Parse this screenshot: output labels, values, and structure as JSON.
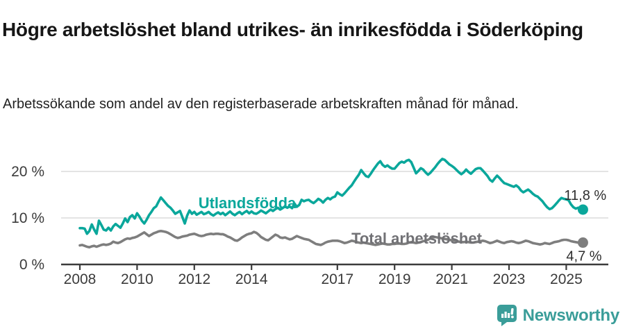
{
  "header": {
    "title": "Högre arbetslöshet bland utrikes- än inrikesfödda i Söderköping",
    "subtitle": "Arbetssökande som andel av den registerbaserade arbetskraften månad för månad."
  },
  "footer": {
    "brand": "Newsworthy",
    "brand_color": "#3a9d99",
    "logo_icon": "newsworthy-speech-bubble-bar-chart-icon"
  },
  "colors": {
    "foreign_born_line": "#0aa79b",
    "total_line": "#7e7e7e",
    "total_label": "#717175",
    "axis": "#3b3b3b",
    "gridline": "#dcdcdc",
    "value_label": "#2e2e2e"
  },
  "chart_data": {
    "type": "line",
    "title": "Högre arbetslöshet bland utrikes- än inrikesfödda i Söderköping",
    "subtitle": "Arbetssökande som andel av den registerbaserade arbetskraften månad för månad.",
    "x_unit": "monthly",
    "x_start": 2008.0,
    "x_end": 2025.583,
    "x_ticks": [
      "2008",
      "2010",
      "2012",
      "2014",
      "2017",
      "2019",
      "2021",
      "2023",
      "2025"
    ],
    "y_ticks": [
      {
        "value": 0,
        "label": "0 %"
      },
      {
        "value": 10,
        "label": "10 %"
      },
      {
        "value": 20,
        "label": "20 %"
      }
    ],
    "ylim": [
      0,
      24
    ],
    "grid": "horizontal",
    "legend_position": "inline-labels",
    "series": [
      {
        "name": "Utlandsfödda",
        "color": "#0aa79b",
        "end_label": "11,8 %",
        "end_value": 11.8,
        "values": [
          7.8,
          7.8,
          7.7,
          6.6,
          7.2,
          8.6,
          7.5,
          6.6,
          9.4,
          8.5,
          7.5,
          7.3,
          7.9,
          7.3,
          8.2,
          8.7,
          8.3,
          7.9,
          8.8,
          9.9,
          9.1,
          10.2,
          10.6,
          9.9,
          11.0,
          10.3,
          9.4,
          8.8,
          9.6,
          10.6,
          11.3,
          12.1,
          12.5,
          13.5,
          14.4,
          13.8,
          13.2,
          12.6,
          12.2,
          11.6,
          10.9,
          11.2,
          11.5,
          10.2,
          8.8,
          10.5,
          11.6,
          10.9,
          11.3,
          10.7,
          11.0,
          11.3,
          10.8,
          11.0,
          11.3,
          10.8,
          10.5,
          10.9,
          11.2,
          10.8,
          11.1,
          10.6,
          11.0,
          11.4,
          10.9,
          10.6,
          11.0,
          11.3,
          10.8,
          11.2,
          11.5,
          11.0,
          11.4,
          11.0,
          10.9,
          11.2,
          11.6,
          11.3,
          11.0,
          11.4,
          11.8,
          11.5,
          11.9,
          12.2,
          11.8,
          12.1,
          12.5,
          12.2,
          12.5,
          12.1,
          13.1,
          12.4,
          12.8,
          13.9,
          13.6,
          13.8,
          13.9,
          13.5,
          13.2,
          13.6,
          14.1,
          13.8,
          13.3,
          13.9,
          14.3,
          14.0,
          14.4,
          14.6,
          15.5,
          15.1,
          14.8,
          15.3,
          15.9,
          16.5,
          17.0,
          17.8,
          18.6,
          19.3,
          20.3,
          19.6,
          19.0,
          18.8,
          19.5,
          20.3,
          21.0,
          21.7,
          22.2,
          21.4,
          21.0,
          21.3,
          20.9,
          20.6,
          20.6,
          21.2,
          21.8,
          22.1,
          21.9,
          22.3,
          22.5,
          22.0,
          20.8,
          19.6,
          20.1,
          20.7,
          20.4,
          19.8,
          19.3,
          19.7,
          20.3,
          20.9,
          21.6,
          22.2,
          22.7,
          22.5,
          22.0,
          21.5,
          21.2,
          20.8,
          20.3,
          19.8,
          19.4,
          19.8,
          20.4,
          19.9,
          19.5,
          20.0,
          20.5,
          20.7,
          20.7,
          20.2,
          19.6,
          19.0,
          18.2,
          17.8,
          18.5,
          19.1,
          18.6,
          18.0,
          17.5,
          17.3,
          17.1,
          16.9,
          16.7,
          17.0,
          16.6,
          15.9,
          15.5,
          15.8,
          16.1,
          15.7,
          15.2,
          14.8,
          14.6,
          14.1,
          13.6,
          12.9,
          12.3,
          11.9,
          12.1,
          12.6,
          13.2,
          13.8,
          14.3,
          14.1,
          14.0,
          13.8,
          12.9,
          12.3,
          12.0,
          12.2,
          11.9,
          11.8
        ]
      },
      {
        "name": "Total arbetslöshet",
        "color": "#7e7e7e",
        "end_label": "4,7 %",
        "end_value": 4.7,
        "values": [
          4.1,
          4.2,
          4.0,
          3.8,
          3.7,
          3.9,
          4.0,
          3.8,
          4.0,
          4.2,
          4.3,
          4.2,
          4.3,
          4.5,
          4.9,
          4.7,
          4.6,
          4.8,
          5.1,
          5.4,
          5.6,
          5.5,
          5.7,
          5.8,
          6.0,
          6.3,
          6.6,
          6.9,
          6.5,
          6.1,
          6.4,
          6.7,
          6.9,
          7.1,
          7.2,
          7.1,
          7.0,
          6.8,
          6.5,
          6.2,
          5.9,
          5.7,
          5.8,
          6.0,
          6.1,
          6.2,
          6.4,
          6.5,
          6.6,
          6.4,
          6.2,
          6.1,
          6.2,
          6.4,
          6.5,
          6.6,
          6.5,
          6.6,
          6.6,
          6.5,
          6.5,
          6.3,
          6.0,
          5.8,
          5.5,
          5.2,
          5.1,
          5.4,
          5.8,
          6.1,
          6.4,
          6.6,
          6.7,
          7.0,
          6.8,
          6.4,
          5.9,
          5.6,
          5.3,
          5.2,
          5.6,
          6.0,
          6.4,
          6.2,
          5.8,
          5.7,
          5.8,
          5.6,
          5.4,
          5.5,
          5.8,
          6.1,
          5.9,
          5.7,
          5.5,
          5.4,
          5.3,
          5.0,
          4.7,
          4.4,
          4.3,
          4.2,
          4.4,
          4.7,
          4.9,
          5.0,
          5.1,
          5.1,
          5.1,
          5.0,
          4.8,
          4.6,
          4.7,
          4.9,
          5.1,
          5.0,
          4.8,
          4.7,
          4.6,
          4.7,
          4.6,
          4.5,
          4.4,
          4.3,
          4.2,
          4.3,
          4.4,
          4.5,
          4.4,
          4.3,
          4.3,
          4.4,
          4.4,
          4.5,
          4.5,
          4.4,
          4.4,
          4.5,
          4.7,
          4.8,
          4.7,
          4.6,
          4.7,
          4.8,
          5.0,
          5.1,
          5.3,
          5.6,
          5.8,
          5.9,
          5.8,
          5.7,
          5.6,
          5.5,
          5.4,
          5.3,
          5.2,
          5.1,
          5.0,
          4.9,
          4.8,
          4.8,
          4.9,
          4.8,
          4.7,
          4.7,
          4.8,
          4.9,
          5.0,
          5.1,
          5.0,
          4.8,
          4.6,
          4.7,
          4.9,
          5.1,
          4.9,
          4.7,
          4.6,
          4.8,
          4.9,
          5.0,
          4.9,
          4.7,
          4.6,
          4.7,
          4.9,
          5.1,
          5.0,
          4.8,
          4.6,
          4.5,
          4.4,
          4.3,
          4.4,
          4.6,
          4.5,
          4.4,
          4.6,
          4.8,
          4.9,
          5.0,
          5.2,
          5.3,
          5.3,
          5.2,
          5.0,
          4.9,
          4.8,
          4.7,
          4.6,
          4.7
        ]
      }
    ]
  }
}
